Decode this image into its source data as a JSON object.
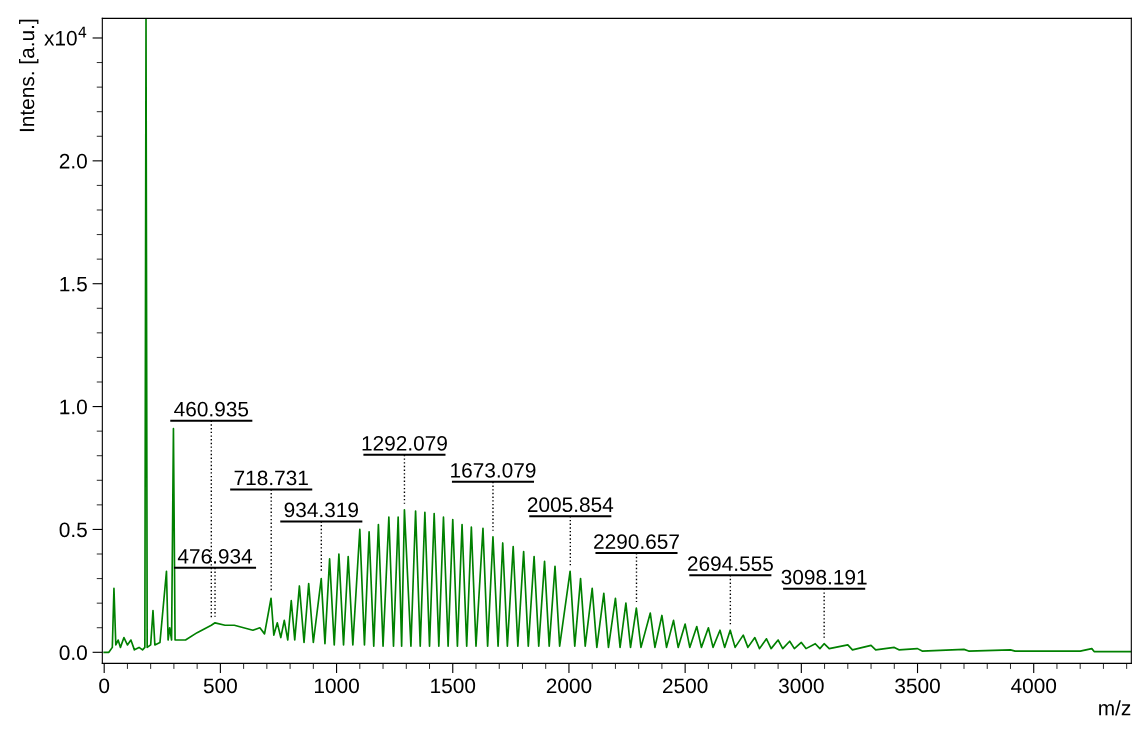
{
  "chart_data": {
    "type": "line",
    "xlabel": "m/z",
    "ylabel": "Intens. [a.u.]",
    "xlim": [
      -8,
      4420
    ],
    "ylim": [
      -0.045,
      2.58
    ],
    "xticks": [
      0,
      {
        "value": 100,
        "label": null
      },
      {
        "value": 200,
        "label": null
      },
      {
        "value": 300,
        "label": null
      },
      {
        "value": 400,
        "label": null
      },
      500,
      {
        "value": 600,
        "label": null
      },
      {
        "value": 700,
        "label": null
      },
      {
        "value": 800,
        "label": null
      },
      {
        "value": 900,
        "label": null
      },
      1000,
      {
        "value": 1100,
        "label": null
      },
      {
        "value": 1200,
        "label": null
      },
      {
        "value": 1300,
        "label": null
      },
      {
        "value": 1400,
        "label": null
      },
      1500,
      {
        "value": 1600,
        "label": null
      },
      {
        "value": 1700,
        "label": null
      },
      {
        "value": 1800,
        "label": null
      },
      {
        "value": 1900,
        "label": null
      },
      2000,
      {
        "value": 2100,
        "label": null
      },
      {
        "value": 2200,
        "label": null
      },
      {
        "value": 2300,
        "label": null
      },
      {
        "value": 2400,
        "label": null
      },
      2500,
      {
        "value": 2600,
        "label": null
      },
      {
        "value": 2700,
        "label": null
      },
      {
        "value": 2800,
        "label": null
      },
      {
        "value": 2900,
        "label": null
      },
      3000,
      {
        "value": 3100,
        "label": null
      },
      {
        "value": 3200,
        "label": null
      },
      {
        "value": 3300,
        "label": null
      },
      {
        "value": 3400,
        "label": null
      },
      3500,
      {
        "value": 3600,
        "label": null
      },
      {
        "value": 3700,
        "label": null
      },
      {
        "value": 3800,
        "label": null
      },
      {
        "value": 3900,
        "label": null
      },
      4000,
      {
        "value": 4100,
        "label": null
      },
      {
        "value": 4200,
        "label": null
      },
      {
        "value": 4300,
        "label": null
      },
      {
        "value": 4400,
        "label": null
      }
    ],
    "yticks": [
      {
        "value": 0,
        "label": "0.0"
      },
      {
        "value": 0.1,
        "label": null
      },
      {
        "value": 0.2,
        "label": null
      },
      {
        "value": 0.3,
        "label": null
      },
      {
        "value": 0.4,
        "label": null
      },
      0.5,
      {
        "value": 0.6,
        "label": null
      },
      {
        "value": 0.7,
        "label": null
      },
      {
        "value": 0.8,
        "label": null
      },
      {
        "value": 0.9,
        "label": null
      },
      {
        "value": 1.0,
        "label": "1.0"
      },
      {
        "value": 1.1,
        "label": null
      },
      {
        "value": 1.2,
        "label": null
      },
      {
        "value": 1.3,
        "label": null
      },
      {
        "value": 1.4,
        "label": null
      },
      1.5,
      {
        "value": 1.6,
        "label": null
      },
      {
        "value": 1.7,
        "label": null
      },
      {
        "value": 1.8,
        "label": null
      },
      {
        "value": 1.9,
        "label": null
      },
      {
        "value": 2.0,
        "label": "2.0"
      },
      {
        "value": 2.1,
        "label": null
      },
      {
        "value": 2.2,
        "label": null
      },
      {
        "value": 2.3,
        "label": null
      },
      {
        "value": 2.4,
        "label": null
      },
      {
        "value": 2.5,
        "label": "x10$^{4}$"
      }
    ],
    "grid": false,
    "legend": false,
    "marker": "none",
    "line_style": "solid",
    "series": [
      {
        "color": "#008000",
        "x": [
          0,
          20,
          35,
          42,
          50,
          60,
          70,
          85,
          100,
          115,
          130,
          150,
          165,
          175,
          180,
          185,
          200,
          210,
          218,
          240,
          268,
          275,
          282,
          290,
          298,
          305,
          350,
          400,
          461,
          477,
          520,
          560,
          600,
          640,
          670,
          690,
          718,
          730,
          745,
          760,
          775,
          790,
          805,
          820,
          840,
          860,
          880,
          900,
          934,
          950,
          970,
          990,
          1010,
          1030,
          1050,
          1070,
          1100,
          1120,
          1140,
          1160,
          1180,
          1200,
          1225,
          1245,
          1265,
          1280,
          1292,
          1320,
          1340,
          1360,
          1380,
          1400,
          1420,
          1440,
          1460,
          1480,
          1500,
          1520,
          1540,
          1560,
          1580,
          1600,
          1630,
          1650,
          1673,
          1695,
          1715,
          1735,
          1760,
          1780,
          1805,
          1825,
          1850,
          1870,
          1895,
          1915,
          1940,
          1960,
          2005,
          2025,
          2050,
          2070,
          2100,
          2120,
          2150,
          2170,
          2200,
          2220,
          2245,
          2265,
          2290,
          2310,
          2350,
          2370,
          2400,
          2420,
          2450,
          2470,
          2500,
          2520,
          2550,
          2570,
          2600,
          2620,
          2650,
          2670,
          2694,
          2715,
          2750,
          2770,
          2800,
          2820,
          2850,
          2870,
          2900,
          2920,
          2950,
          2970,
          3000,
          3020,
          3060,
          3080,
          3098,
          3120,
          3200,
          3220,
          3300,
          3320,
          3400,
          3420,
          3500,
          3520,
          3700,
          3720,
          3900,
          3920,
          4000,
          4200,
          4250,
          4260,
          4420
        ],
        "values": [
          0.0,
          0.0,
          0.02,
          0.26,
          0.03,
          0.05,
          0.02,
          0.06,
          0.03,
          0.05,
          0.01,
          0.02,
          0.01,
          0.02,
          2.58,
          0.02,
          0.03,
          0.17,
          0.03,
          0.04,
          0.33,
          0.05,
          0.1,
          0.05,
          0.91,
          0.05,
          0.05,
          0.08,
          0.11,
          0.12,
          0.11,
          0.11,
          0.1,
          0.09,
          0.1,
          0.075,
          0.22,
          0.07,
          0.12,
          0.06,
          0.13,
          0.05,
          0.21,
          0.05,
          0.27,
          0.04,
          0.28,
          0.04,
          0.3,
          0.035,
          0.38,
          0.03,
          0.4,
          0.03,
          0.39,
          0.03,
          0.5,
          0.03,
          0.49,
          0.025,
          0.52,
          0.025,
          0.55,
          0.025,
          0.55,
          0.025,
          0.58,
          0.025,
          0.575,
          0.025,
          0.57,
          0.025,
          0.565,
          0.025,
          0.55,
          0.025,
          0.54,
          0.025,
          0.52,
          0.025,
          0.51,
          0.025,
          0.505,
          0.025,
          0.47,
          0.025,
          0.445,
          0.025,
          0.43,
          0.025,
          0.41,
          0.025,
          0.39,
          0.025,
          0.37,
          0.025,
          0.35,
          0.025,
          0.33,
          0.025,
          0.3,
          0.025,
          0.26,
          0.02,
          0.24,
          0.02,
          0.22,
          0.02,
          0.2,
          0.02,
          0.18,
          0.02,
          0.16,
          0.02,
          0.15,
          0.02,
          0.13,
          0.02,
          0.115,
          0.02,
          0.105,
          0.02,
          0.1,
          0.02,
          0.09,
          0.02,
          0.09,
          0.02,
          0.07,
          0.02,
          0.06,
          0.015,
          0.055,
          0.015,
          0.05,
          0.015,
          0.045,
          0.015,
          0.04,
          0.015,
          0.035,
          0.015,
          0.035,
          0.015,
          0.03,
          0.01,
          0.028,
          0.01,
          0.02,
          0.01,
          0.015,
          0.005,
          0.012,
          0.005,
          0.01,
          0.005,
          0.005,
          0.005,
          0.015,
          0.003,
          0.003
        ]
      }
    ],
    "annotations": [
      {
        "text": "460.935",
        "x": 460.935,
        "y": 0.11
      },
      {
        "text": "476.934",
        "x": 476.934,
        "y": 0.12
      },
      {
        "text": "718.731",
        "x": 718.731,
        "y": 0.22
      },
      {
        "text": "934.319",
        "x": 934.319,
        "y": 0.3
      },
      {
        "text": "1292.079",
        "x": 1292.079,
        "y": 0.58
      },
      {
        "text": "1673.079",
        "x": 1673.079,
        "y": 0.47
      },
      {
        "text": "2005.854",
        "x": 2005.854,
        "y": 0.33
      },
      {
        "text": "2290.657",
        "x": 2290.657,
        "y": 0.18
      },
      {
        "text": "2694.555",
        "x": 2694.555,
        "y": 0.09
      },
      {
        "text": "3098.191",
        "x": 3098.191,
        "y": 0.035
      }
    ]
  }
}
